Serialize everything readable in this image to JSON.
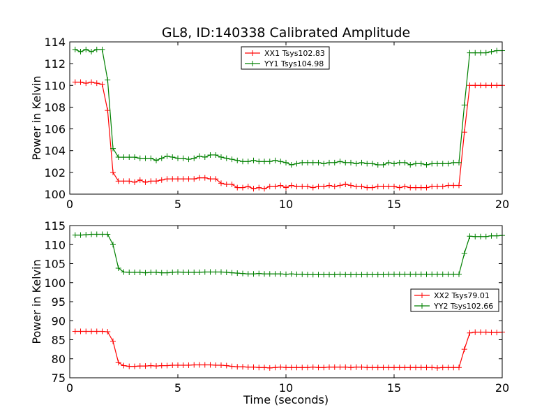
{
  "title": "GL8, ID:140338 Calibrated Amplitude",
  "xlabel": "Time (seconds)",
  "chart_data": [
    {
      "type": "line",
      "title": "GL8, ID:140338 Calibrated Amplitude",
      "xlabel": "",
      "ylabel": "Power in Kelvin",
      "xlim": [
        0,
        20
      ],
      "ylim": [
        100,
        114
      ],
      "xticks": [
        0,
        5,
        10,
        15,
        20
      ],
      "yticks": [
        100,
        102,
        104,
        106,
        108,
        110,
        112,
        114
      ],
      "legend_position": "top-center",
      "x": [
        0.25,
        0.5,
        0.75,
        1.0,
        1.25,
        1.5,
        1.75,
        2.0,
        2.25,
        2.5,
        2.75,
        3.0,
        3.25,
        3.5,
        3.75,
        4.0,
        4.25,
        4.5,
        4.75,
        5.0,
        5.25,
        5.5,
        5.75,
        6.0,
        6.25,
        6.5,
        6.75,
        7.0,
        7.25,
        7.5,
        7.75,
        8.0,
        8.25,
        8.5,
        8.75,
        9.0,
        9.25,
        9.5,
        9.75,
        10.0,
        10.25,
        10.5,
        10.75,
        11.0,
        11.25,
        11.5,
        11.75,
        12.0,
        12.25,
        12.5,
        12.75,
        13.0,
        13.25,
        13.5,
        13.75,
        14.0,
        14.25,
        14.5,
        14.75,
        15.0,
        15.25,
        15.5,
        15.75,
        16.0,
        16.25,
        16.5,
        16.75,
        17.0,
        17.25,
        17.5,
        17.75,
        18.0,
        18.25,
        18.5,
        18.75,
        19.0,
        19.25,
        19.5,
        19.75,
        20.0
      ],
      "series": [
        {
          "name": "XX1 Tsys102.83",
          "color": "#ff0000",
          "values": [
            110.3,
            110.3,
            110.2,
            110.3,
            110.2,
            110.1,
            107.7,
            102.0,
            101.2,
            101.2,
            101.2,
            101.1,
            101.3,
            101.1,
            101.2,
            101.2,
            101.3,
            101.4,
            101.4,
            101.4,
            101.4,
            101.4,
            101.4,
            101.5,
            101.5,
            101.4,
            101.4,
            101.0,
            100.9,
            100.9,
            100.6,
            100.6,
            100.7,
            100.5,
            100.6,
            100.5,
            100.7,
            100.7,
            100.8,
            100.6,
            100.8,
            100.7,
            100.7,
            100.7,
            100.6,
            100.7,
            100.7,
            100.8,
            100.7,
            100.8,
            100.9,
            100.8,
            100.7,
            100.7,
            100.6,
            100.6,
            100.7,
            100.7,
            100.7,
            100.7,
            100.6,
            100.7,
            100.6,
            100.6,
            100.6,
            100.6,
            100.7,
            100.7,
            100.7,
            100.8,
            100.8,
            100.8,
            105.7,
            110.0,
            110.0,
            110.0,
            110.0,
            110.0,
            110.0,
            110.0
          ]
        },
        {
          "name": "YY1 Tsys104.98",
          "color": "#008000",
          "values": [
            113.3,
            113.1,
            113.3,
            113.1,
            113.3,
            113.3,
            110.5,
            104.2,
            103.4,
            103.4,
            103.4,
            103.4,
            103.3,
            103.3,
            103.3,
            103.1,
            103.3,
            103.5,
            103.4,
            103.3,
            103.3,
            103.2,
            103.3,
            103.5,
            103.4,
            103.6,
            103.6,
            103.4,
            103.3,
            103.2,
            103.1,
            103.0,
            103.0,
            103.1,
            103.0,
            103.0,
            103.0,
            103.1,
            103.0,
            102.9,
            102.7,
            102.8,
            102.9,
            102.9,
            102.9,
            102.9,
            102.8,
            102.9,
            102.9,
            103.0,
            102.9,
            102.9,
            102.8,
            102.9,
            102.8,
            102.8,
            102.7,
            102.7,
            102.9,
            102.8,
            102.9,
            102.9,
            102.7,
            102.8,
            102.8,
            102.7,
            102.8,
            102.8,
            102.8,
            102.8,
            102.9,
            102.9,
            108.2,
            113.0,
            113.0,
            113.0,
            113.0,
            113.1,
            113.2,
            113.2
          ]
        }
      ]
    },
    {
      "type": "line",
      "title": "",
      "xlabel": "Time (seconds)",
      "ylabel": "Power in Kelvin",
      "xlim": [
        0,
        20
      ],
      "ylim": [
        75,
        115
      ],
      "xticks": [
        0,
        5,
        10,
        15,
        20
      ],
      "yticks": [
        75,
        80,
        85,
        90,
        95,
        100,
        105,
        110,
        115
      ],
      "legend_position": "center-right",
      "x": [
        0.25,
        0.5,
        0.75,
        1.0,
        1.25,
        1.5,
        1.75,
        2.0,
        2.25,
        2.5,
        2.75,
        3.0,
        3.25,
        3.5,
        3.75,
        4.0,
        4.25,
        4.5,
        4.75,
        5.0,
        5.25,
        5.5,
        5.75,
        6.0,
        6.25,
        6.5,
        6.75,
        7.0,
        7.25,
        7.5,
        7.75,
        8.0,
        8.25,
        8.5,
        8.75,
        9.0,
        9.25,
        9.5,
        9.75,
        10.0,
        10.25,
        10.5,
        10.75,
        11.0,
        11.25,
        11.5,
        11.75,
        12.0,
        12.25,
        12.5,
        12.75,
        13.0,
        13.25,
        13.5,
        13.75,
        14.0,
        14.25,
        14.5,
        14.75,
        15.0,
        15.25,
        15.5,
        15.75,
        16.0,
        16.25,
        16.5,
        16.75,
        17.0,
        17.25,
        17.5,
        17.75,
        18.0,
        18.25,
        18.5,
        18.75,
        19.0,
        19.25,
        19.5,
        19.75,
        20.0
      ],
      "series": [
        {
          "name": "XX2 Tsys79.01",
          "color": "#ff0000",
          "values": [
            87.2,
            87.2,
            87.2,
            87.2,
            87.2,
            87.2,
            87.1,
            84.6,
            79.0,
            78.2,
            78.0,
            78.0,
            78.1,
            78.1,
            78.2,
            78.1,
            78.2,
            78.2,
            78.3,
            78.3,
            78.3,
            78.3,
            78.4,
            78.4,
            78.4,
            78.4,
            78.3,
            78.3,
            78.2,
            78.0,
            77.9,
            77.9,
            77.8,
            77.8,
            77.7,
            77.7,
            77.6,
            77.7,
            77.8,
            77.7,
            77.7,
            77.7,
            77.7,
            77.7,
            77.8,
            77.7,
            77.7,
            77.8,
            77.8,
            77.8,
            77.8,
            77.7,
            77.8,
            77.8,
            77.7,
            77.7,
            77.7,
            77.7,
            77.7,
            77.7,
            77.7,
            77.7,
            77.7,
            77.7,
            77.7,
            77.7,
            77.7,
            77.6,
            77.7,
            77.7,
            77.7,
            77.7,
            82.5,
            86.8,
            87.0,
            87.0,
            87.0,
            86.9,
            86.9,
            87.0
          ]
        },
        {
          "name": "YY2 Tsys102.66",
          "color": "#008000",
          "values": [
            112.5,
            112.5,
            112.6,
            112.7,
            112.7,
            112.7,
            112.7,
            110.0,
            103.8,
            102.8,
            102.7,
            102.7,
            102.7,
            102.6,
            102.7,
            102.7,
            102.6,
            102.6,
            102.7,
            102.8,
            102.7,
            102.7,
            102.7,
            102.7,
            102.8,
            102.8,
            102.8,
            102.8,
            102.7,
            102.6,
            102.5,
            102.4,
            102.3,
            102.3,
            102.4,
            102.3,
            102.3,
            102.3,
            102.3,
            102.2,
            102.3,
            102.2,
            102.2,
            102.1,
            102.1,
            102.1,
            102.1,
            102.1,
            102.1,
            102.2,
            102.1,
            102.1,
            102.1,
            102.1,
            102.1,
            102.1,
            102.1,
            102.1,
            102.2,
            102.2,
            102.2,
            102.2,
            102.2,
            102.2,
            102.2,
            102.2,
            102.2,
            102.2,
            102.2,
            102.2,
            102.2,
            102.2,
            107.7,
            112.2,
            112.1,
            112.1,
            112.1,
            112.3,
            112.3,
            112.4
          ]
        }
      ]
    }
  ]
}
